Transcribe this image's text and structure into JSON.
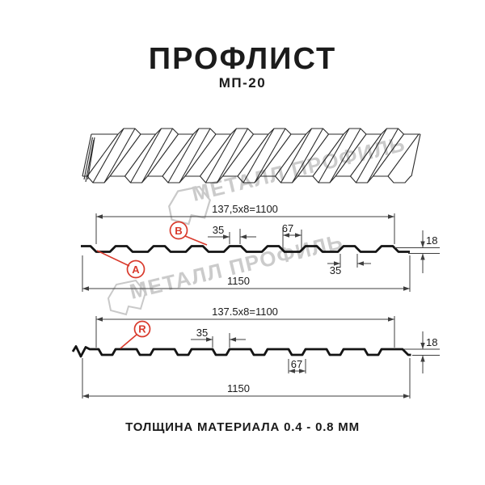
{
  "header": {
    "title": "ПРОФЛИСТ",
    "subtitle": "МП-20"
  },
  "watermark": {
    "brand": "МЕТАЛЛ ПРОФИЛЬ"
  },
  "profile_top": {
    "pitch_formula": "137,5x8=1100",
    "overall_width": "1150",
    "rib_top_width": "35",
    "rib_base_width": "35",
    "flute_width": "67",
    "profile_height": "18",
    "labels": {
      "a": "A",
      "b": "B"
    }
  },
  "profile_bottom": {
    "pitch_formula": "137.5x8=1100",
    "overall_width": "1150",
    "groove_width": "35",
    "flute_width": "67",
    "profile_height": "18",
    "labels": {
      "r": "R"
    }
  },
  "footer": {
    "material_note": "ТОЛЩИНА МАТЕРИАЛА 0.4 - 0.8 ММ"
  },
  "colors": {
    "accent_red": "#d93a2c",
    "line_black": "#1a1a1a",
    "watermark_gray": "#c9c9c9"
  }
}
